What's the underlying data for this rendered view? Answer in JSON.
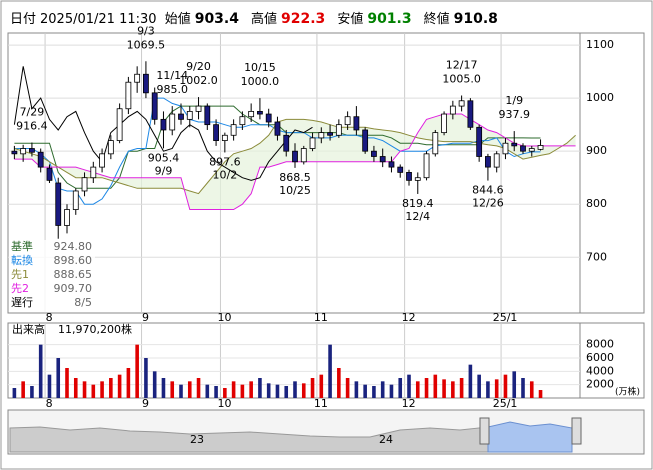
{
  "header": {
    "date_label": "日付",
    "datetime": "2025/01/21 11:30",
    "items": [
      {
        "label": "始値",
        "value": 903.4,
        "color": "#000000"
      },
      {
        "label": "高値",
        "value": 922.3,
        "color": "#e00000"
      },
      {
        "label": "安値",
        "value": 901.3,
        "color": "#008000"
      },
      {
        "label": "終値",
        "value": 910.8,
        "color": "#000000"
      }
    ]
  },
  "chart_data": {
    "type": "candlestick",
    "categories": [
      null,
      null,
      null,
      null,
      "8",
      null,
      null,
      null,
      null,
      null,
      null,
      null,
      null,
      null,
      null,
      "9",
      null,
      null,
      null,
      null,
      null,
      null,
      null,
      null,
      "10",
      null,
      null,
      null,
      null,
      null,
      null,
      null,
      null,
      null,
      null,
      "11",
      null,
      null,
      null,
      null,
      null,
      null,
      null,
      null,
      null,
      "12",
      null,
      null,
      null,
      null,
      null,
      null,
      null,
      null,
      null,
      null,
      "25/1",
      null,
      null,
      null,
      null,
      null,
      null,
      null,
      null
    ],
    "open": [
      900,
      895,
      905,
      898,
      868,
      840,
      760,
      790,
      825,
      850,
      870,
      895,
      920,
      980,
      1030,
      1045,
      1010,
      960,
      940,
      970,
      960,
      975,
      985,
      950,
      920,
      930,
      950,
      965,
      975,
      970,
      955,
      930,
      900,
      880,
      905,
      925,
      935,
      930,
      950,
      965,
      940,
      900,
      890,
      880,
      870,
      860,
      845,
      850,
      895,
      935,
      970,
      985,
      995,
      945,
      890,
      870,
      895,
      915,
      910,
      900,
      903.4,
      null,
      null,
      null,
      null
    ],
    "high": [
      910,
      912,
      916.4,
      905,
      875,
      850,
      800,
      830,
      860,
      880,
      905,
      930,
      990,
      1040,
      1060,
      1069.5,
      1020,
      975,
      985,
      990,
      985,
      1002,
      990,
      960,
      935,
      960,
      975,
      990,
      1000,
      980,
      965,
      940,
      915,
      910,
      935,
      945,
      950,
      960,
      975,
      985,
      945,
      910,
      905,
      890,
      875,
      865,
      860,
      900,
      940,
      975,
      995,
      1005,
      1000,
      950,
      895,
      900,
      925,
      937.9,
      915,
      910,
      922.3,
      null,
      null,
      null,
      null
    ],
    "low": [
      885,
      880,
      890,
      860,
      840,
      735,
      745,
      780,
      815,
      840,
      860,
      885,
      915,
      970,
      1010,
      1000,
      950,
      905.4,
      930,
      950,
      945,
      960,
      940,
      910,
      897.6,
      920,
      940,
      955,
      960,
      945,
      920,
      890,
      868.5,
      875,
      900,
      915,
      920,
      925,
      940,
      930,
      895,
      880,
      870,
      860,
      850,
      835,
      819.4,
      845,
      890,
      930,
      960,
      975,
      940,
      880,
      844.6,
      860,
      885,
      900,
      895,
      890,
      901.3,
      null,
      null,
      null,
      null
    ],
    "close": [
      895,
      905,
      898,
      870,
      845,
      760,
      790,
      825,
      850,
      870,
      895,
      920,
      980,
      1030,
      1045,
      1010,
      960,
      940,
      970,
      960,
      975,
      985,
      950,
      920,
      930,
      950,
      965,
      975,
      970,
      955,
      930,
      900,
      880,
      905,
      925,
      935,
      930,
      950,
      965,
      940,
      900,
      890,
      880,
      870,
      860,
      845,
      850,
      895,
      935,
      970,
      985,
      995,
      945,
      890,
      870,
      895,
      915,
      910,
      900,
      905,
      910.8,
      null,
      null,
      null,
      null
    ],
    "up_color": "#ffffff",
    "down_color": "#1a1a80",
    "wick_color": "#000000",
    "ylim": [
      595,
      1119
    ],
    "yticks": [
      700,
      800,
      900,
      1000,
      1100
    ],
    "grid": true,
    "series": [
      {
        "name": "基準",
        "color": "#2e6b2e",
        "current": {
          "value": 924.8,
          "label": "924.80"
        },
        "values": [
          915,
          915,
          915,
          915,
          915,
          860,
          840,
          830,
          830,
          830,
          830,
          830,
          850,
          900,
          900,
          905,
          905,
          955,
          975,
          985,
          985,
          985,
          985,
          985,
          985,
          985,
          970,
          960,
          950,
          950,
          950,
          935,
          935,
          935,
          935,
          935,
          935,
          935,
          930,
          930,
          930,
          930,
          930,
          925,
          915,
          915,
          915,
          912,
          912,
          912,
          912,
          912,
          912,
          912,
          925,
          925,
          925,
          925,
          925,
          924.8,
          924.8,
          null,
          null,
          null,
          null
        ]
      },
      {
        "name": "転換",
        "color": "#1e88e5",
        "current": {
          "value": 898.6,
          "label": "898.60"
        },
        "values": [
          905,
          905,
          905,
          895,
          880,
          830,
          825,
          825,
          800,
          800,
          810,
          835,
          870,
          900,
          905,
          905,
          1000,
          1000,
          990,
          985,
          960,
          955,
          955,
          955,
          950,
          945,
          945,
          950,
          950,
          950,
          940,
          935,
          935,
          935,
          925,
          925,
          925,
          930,
          930,
          930,
          925,
          925,
          920,
          910,
          900,
          900,
          900,
          900,
          910,
          912,
          915,
          915,
          915,
          920,
          920,
          925,
          900,
          890,
          895,
          898.6,
          898.6,
          null,
          null,
          null,
          null
        ]
      },
      {
        "name": "先1",
        "color": "#8b8b3a",
        "current": {
          "value": 888.65,
          "label": "888.65"
        },
        "values": [
          905,
          900,
          895,
          890,
          880,
          870,
          860,
          850,
          850,
          850,
          850,
          845,
          840,
          835,
          830,
          830,
          830,
          830,
          830,
          830,
          825,
          820,
          840,
          860,
          880,
          895,
          900,
          905,
          915,
          930,
          955,
          960,
          960,
          960,
          958,
          955,
          950,
          945,
          945,
          945,
          945,
          942,
          940,
          938,
          935,
          930,
          925,
          922,
          920,
          918,
          918,
          918,
          918,
          915,
          912,
          910,
          905,
          895,
          885,
          888.65,
          892,
          895,
          905,
          915,
          930
        ]
      },
      {
        "name": "先2",
        "color": "#e020e0",
        "current": {
          "value": 909.7,
          "label": "909.70"
        },
        "values": [
          885,
          885,
          885,
          870,
          870,
          870,
          870,
          870,
          865,
          860,
          855,
          850,
          850,
          850,
          850,
          850,
          850,
          850,
          850,
          850,
          790,
          790,
          790,
          790,
          790,
          790,
          800,
          820,
          870,
          870,
          875,
          880,
          880,
          880,
          880,
          880,
          880,
          880,
          880,
          880,
          880,
          880,
          880,
          880,
          900,
          905,
          935,
          960,
          965,
          970,
          970,
          970,
          960,
          950,
          940,
          935,
          925,
          915,
          910,
          909.7,
          910,
          910,
          910,
          910,
          910
        ]
      },
      {
        "name": "遅行",
        "color": "#000000",
        "current": "8/5",
        "values": [
          950,
          1060,
          980,
          1000,
          960,
          940,
          965,
          975,
          935,
          900,
          880,
          935,
          950,
          965,
          975,
          960,
          930,
          900,
          905,
          935,
          950,
          940,
          900,
          880,
          870,
          860,
          850,
          845,
          850,
          880,
          900,
          920,
          940,
          935,
          945,
          null,
          null,
          null,
          null,
          null,
          null,
          null,
          null,
          null,
          null,
          null,
          null,
          null,
          null,
          null,
          null,
          null,
          null,
          null,
          null,
          null,
          null,
          null,
          null,
          null,
          null,
          null,
          null,
          null,
          null
        ]
      }
    ],
    "annotations": [
      {
        "date": "7/29",
        "value": 916.4
      },
      {
        "date": "9/3",
        "value": 1069.5
      },
      {
        "date": "9/9",
        "value": 905.4
      },
      {
        "date": "9/20",
        "value": {
          "value": 1002,
          "label": "1002.0"
        }
      },
      {
        "date": "10/2",
        "value": 897.6
      },
      {
        "date": "10/15",
        "value": {
          "value": 1000,
          "label": "1000.0"
        }
      },
      {
        "date": "10/25",
        "value": 868.5
      },
      {
        "date": "11/14",
        "value": {
          "value": 985,
          "label": "985.0"
        }
      },
      {
        "date": "12/4",
        "value": 819.4
      },
      {
        "date": "12/17",
        "value": {
          "value": 1005,
          "label": "1005.0"
        }
      },
      {
        "date": "12/26",
        "value": 844.6
      },
      {
        "date": "1/9",
        "value": 937.9
      }
    ],
    "volume": {
      "title": "出来高",
      "total": {
        "value": 11970200,
        "label": "11,970,200株"
      },
      "unit": "(万株)",
      "up_color": "#e00000",
      "down_color": "#1a237e",
      "ylim": [
        0,
        9000
      ],
      "yticks": [
        2000,
        4000,
        6000,
        8000
      ],
      "values": [
        1500,
        2500,
        1800,
        8000,
        3500,
        6000,
        4500,
        3000,
        2500,
        2000,
        2500,
        3000,
        3500,
        4500,
        8000,
        6000,
        4000,
        3000,
        2500,
        2000,
        2500,
        3000,
        2000,
        1800,
        1500,
        2500,
        2000,
        2500,
        3000,
        2200,
        2000,
        1800,
        2500,
        2200,
        3000,
        3500,
        8000,
        4500,
        3000,
        2500,
        2000,
        1800,
        2500,
        2000,
        3000,
        3500,
        2500,
        3000,
        3500,
        2800,
        2500,
        3000,
        5000,
        3500,
        2500,
        2800,
        3500,
        4000,
        3000,
        2500,
        1197.02,
        null,
        null,
        null,
        null
      ]
    }
  },
  "navigator": {
    "labels": [
      "23",
      "24"
    ]
  }
}
